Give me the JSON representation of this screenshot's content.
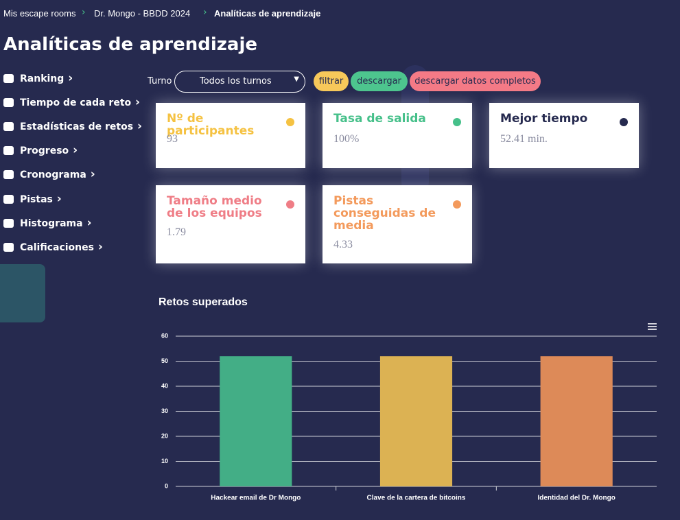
{
  "breadcrumb": [
    "Mis escape rooms",
    "Dr. Mongo - BBDD 2024",
    "Analíticas de aprendizaje"
  ],
  "title": "Analíticas de aprendizaje",
  "sidebar": [
    "Ranking",
    "Tiempo de cada reto",
    "Estadísticas de retos",
    "Progreso",
    "Cronograma",
    "Pistas",
    "Histograma",
    "Calificaciones"
  ],
  "filter": {
    "label": "Turno",
    "select": "Todos los turnos",
    "buttons": [
      "filtrar",
      "descargar",
      "descargar datos completos"
    ]
  },
  "cards": [
    {
      "title": "Nº de participantes",
      "value": "93"
    },
    {
      "title": "Tasa de salida",
      "value": "100%"
    },
    {
      "title": "Mejor tiempo",
      "value": "52.41 min."
    },
    {
      "title": "Tamaño medio de los equipos",
      "value": "1.79"
    },
    {
      "title": "Pistas conseguidas de media",
      "value": "4.33"
    }
  ],
  "chart_data": {
    "type": "bar",
    "title": "Retos superados",
    "categories": [
      "Hackear email de Dr Mongo",
      "Clave de la cartera de bitcoins",
      "Identidad del Dr. Mongo"
    ],
    "values": [
      52,
      52,
      52
    ],
    "colors": [
      "#43ae86",
      "#dcb253",
      "#dd8a58"
    ],
    "ylim": [
      0,
      60
    ],
    "yticks": [
      0,
      10,
      20,
      30,
      40,
      50,
      60
    ],
    "grid": true
  }
}
